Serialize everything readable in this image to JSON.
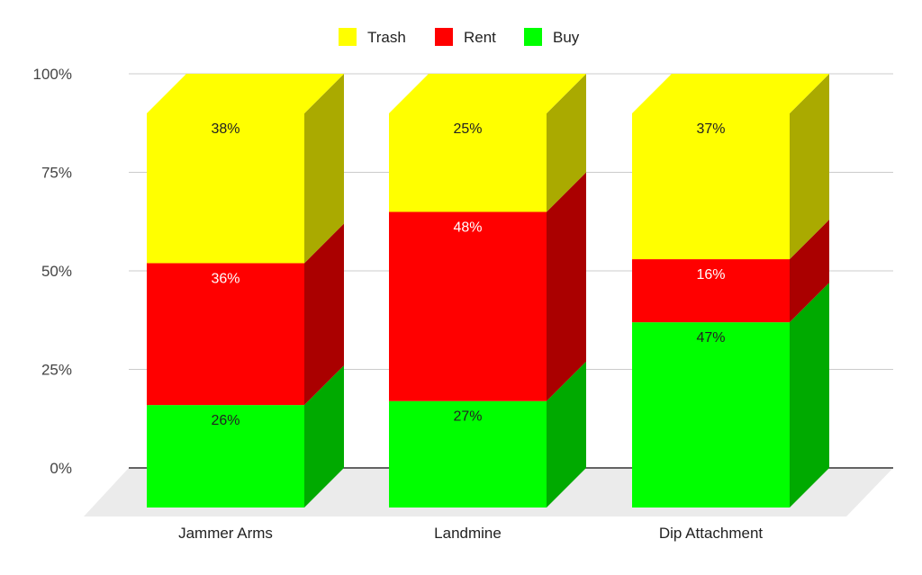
{
  "chart_data": {
    "type": "bar",
    "subtype": "stacked-100-3d",
    "title": "",
    "xlabel": "",
    "ylabel": "",
    "ylim": [
      0,
      100
    ],
    "yticks": [
      "0%",
      "25%",
      "50%",
      "75%",
      "100%"
    ],
    "grid": true,
    "legend_position": "top",
    "categories": [
      "Jammer Arms",
      "Landmine",
      "Dip Attachment"
    ],
    "series": [
      {
        "name": "Buy",
        "color": "#00ff00",
        "side_color": "#00aa00",
        "label_color": "#222222",
        "values": [
          26,
          27,
          47
        ],
        "labels": [
          "26%",
          "27%",
          "47%"
        ]
      },
      {
        "name": "Rent",
        "color": "#ff0000",
        "side_color": "#aa0000",
        "label_color": "#ffffff",
        "values": [
          36,
          48,
          16
        ],
        "labels": [
          "36%",
          "48%",
          "16%"
        ]
      },
      {
        "name": "Trash",
        "color": "#ffff00",
        "side_color": "#aaaa00",
        "label_color": "#222222",
        "values": [
          38,
          25,
          37
        ],
        "labels": [
          "38%",
          "25%",
          "37%"
        ]
      }
    ],
    "legend_order": [
      2,
      1,
      0
    ]
  }
}
